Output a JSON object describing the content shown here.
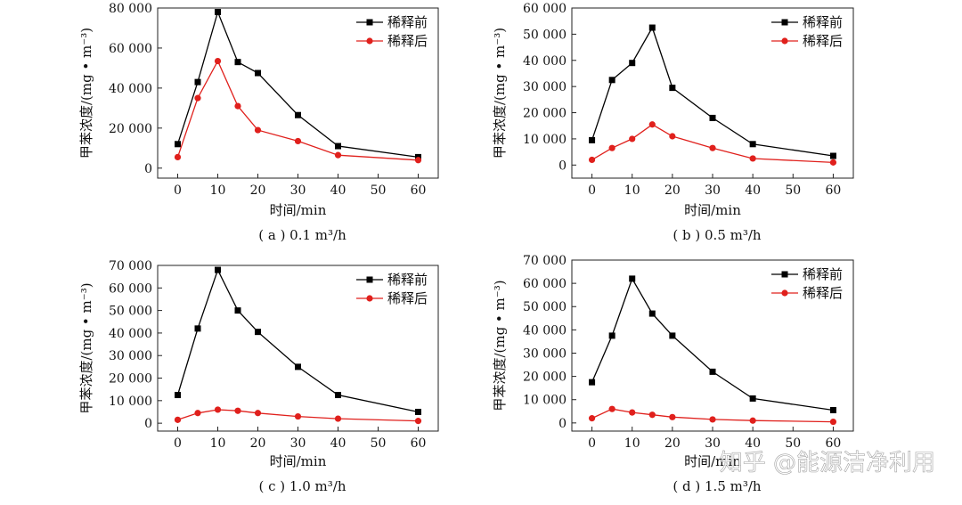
{
  "colors": {
    "before": "#000000",
    "after": "#e0201c",
    "axis": "#222222"
  },
  "watermark": "知乎 @能源洁净利用",
  "chart_data": [
    {
      "type": "line",
      "caption": "( a ) 0.1 m³/h",
      "xlabel": "时间/min",
      "ylabel": "甲苯浓度/(mg • m⁻³)",
      "xlim": [
        -5,
        65
      ],
      "ylim": [
        -5000,
        80000
      ],
      "x_ticks": [
        0,
        10,
        20,
        30,
        40,
        50,
        60
      ],
      "x_tick_labels": [
        "0",
        "10",
        "20",
        "30",
        "40",
        "50",
        "60"
      ],
      "y_ticks": [
        0,
        20000,
        40000,
        60000,
        80000
      ],
      "y_tick_labels": [
        "0",
        "20 000",
        "40 000",
        "60 000",
        "80 000"
      ],
      "legend_position": "top-right",
      "x": [
        0,
        5,
        10,
        15,
        20,
        30,
        40,
        60
      ],
      "series": [
        {
          "name": "稀释前",
          "marker": "square",
          "values": [
            12000,
            43000,
            78000,
            53000,
            47500,
            26500,
            11000,
            5500
          ]
        },
        {
          "name": "稀释后",
          "marker": "circle",
          "values": [
            5500,
            35000,
            53500,
            31000,
            19000,
            13500,
            6500,
            4000
          ]
        }
      ]
    },
    {
      "type": "line",
      "caption": "( b ) 0.5 m³/h",
      "xlabel": "时间/min",
      "ylabel": "甲苯浓度/(mg • m⁻³)",
      "xlim": [
        -5,
        65
      ],
      "ylim": [
        -5000,
        60000
      ],
      "x_ticks": [
        0,
        10,
        20,
        30,
        40,
        50,
        60
      ],
      "x_tick_labels": [
        "0",
        "10",
        "20",
        "30",
        "40",
        "50",
        "60"
      ],
      "y_ticks": [
        0,
        10000,
        20000,
        30000,
        40000,
        50000,
        60000
      ],
      "y_tick_labels": [
        "0",
        "10 000",
        "20 000",
        "30 000",
        "40 000",
        "50 000",
        "60 000"
      ],
      "legend_position": "top-right",
      "x": [
        0,
        5,
        10,
        15,
        20,
        30,
        40,
        60
      ],
      "series": [
        {
          "name": "稀释前",
          "marker": "square",
          "values": [
            9500,
            32500,
            39000,
            52500,
            29500,
            18000,
            8000,
            3500
          ]
        },
        {
          "name": "稀释后",
          "marker": "circle",
          "values": [
            2000,
            6500,
            10000,
            15500,
            11000,
            6500,
            2500,
            1000
          ]
        }
      ]
    },
    {
      "type": "line",
      "caption": "( c ) 1.0 m³/h",
      "xlabel": "时间/min",
      "ylabel": "甲苯浓度/(mg • m⁻³)",
      "xlim": [
        -5,
        65
      ],
      "ylim": [
        -3500,
        70000
      ],
      "x_ticks": [
        0,
        10,
        20,
        30,
        40,
        50,
        60
      ],
      "x_tick_labels": [
        "0",
        "10",
        "20",
        "30",
        "40",
        "50",
        "60"
      ],
      "y_ticks": [
        0,
        10000,
        20000,
        30000,
        40000,
        50000,
        60000,
        70000
      ],
      "y_tick_labels": [
        "0",
        "10 000",
        "20 000",
        "30 000",
        "40 000",
        "50 000",
        "60 000",
        "70 000"
      ],
      "legend_position": "top-right",
      "x": [
        0,
        5,
        10,
        15,
        20,
        30,
        40,
        60
      ],
      "series": [
        {
          "name": "稀释前",
          "marker": "square",
          "values": [
            12500,
            42000,
            68000,
            50000,
            40500,
            25000,
            12500,
            5000
          ]
        },
        {
          "name": "稀释后",
          "marker": "circle",
          "values": [
            1500,
            4500,
            6000,
            5500,
            4500,
            3000,
            2000,
            1000
          ]
        }
      ]
    },
    {
      "type": "line",
      "caption": "( d ) 1.5 m³/h",
      "xlabel": "时间/min",
      "ylabel": "甲苯浓度/(mg • m⁻³)",
      "xlim": [
        -5,
        65
      ],
      "ylim": [
        -3500,
        70000
      ],
      "x_ticks": [
        0,
        10,
        20,
        30,
        40,
        50,
        60
      ],
      "x_tick_labels": [
        "0",
        "10",
        "20",
        "30",
        "40",
        "50",
        "60"
      ],
      "y_ticks": [
        0,
        10000,
        20000,
        30000,
        40000,
        50000,
        60000,
        70000
      ],
      "y_tick_labels": [
        "0",
        "10 000",
        "20 000",
        "30 000",
        "40 000",
        "50 000",
        "60 000",
        "70 000"
      ],
      "legend_position": "top-right",
      "x": [
        0,
        5,
        10,
        15,
        20,
        30,
        40,
        60
      ],
      "series": [
        {
          "name": "稀释前",
          "marker": "square",
          "values": [
            17500,
            37500,
            62000,
            47000,
            37500,
            22000,
            10500,
            5500
          ]
        },
        {
          "name": "稀释后",
          "marker": "circle",
          "values": [
            2000,
            6000,
            4500,
            3500,
            2500,
            1500,
            1000,
            500
          ]
        }
      ]
    }
  ]
}
